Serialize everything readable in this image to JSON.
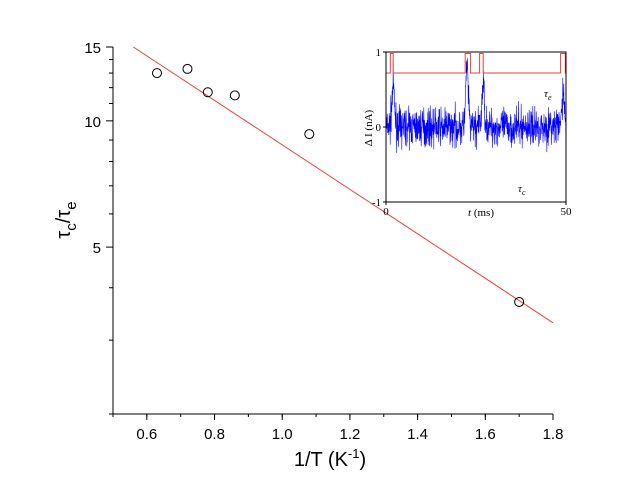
{
  "chart_data": [
    {
      "type": "scatter",
      "x": [
        0.63,
        0.72,
        0.78,
        0.86,
        1.08,
        1.7
      ],
      "y": [
        13.0,
        13.3,
        11.7,
        11.5,
        9.3,
        3.7
      ],
      "fit_line": {
        "x": [
          0.56,
          1.8
        ],
        "y": [
          15.0,
          3.3
        ],
        "color": "#e8433a"
      },
      "xlim": [
        0.5,
        1.8
      ],
      "ylim": [
        2.0,
        15.0
      ],
      "xticks": [
        "0.6",
        "0.8",
        "1.0",
        "1.2",
        "1.4",
        "1.6",
        "1.8"
      ],
      "xtick_values": [
        0.6,
        0.8,
        1.0,
        1.2,
        1.4,
        1.6,
        1.8
      ],
      "yticks": [
        "5",
        "10",
        "15"
      ],
      "ytick_values": [
        5,
        10,
        15
      ],
      "xlabel_main": "1/T (K",
      "xlabel_sup": "-1",
      "xlabel_tail": ")",
      "ylabel_num": "τ",
      "ylabel_num_sub": "c",
      "ylabel_sep": "/τ",
      "ylabel_den_sub": "e",
      "marker_color": "#000000",
      "grid": false
    },
    {
      "type": "line",
      "xlim": [
        0,
        50
      ],
      "ylim": [
        -1,
        1
      ],
      "xticks": [
        "0",
        "50"
      ],
      "xtick_values": [
        0,
        50
      ],
      "yticks": [
        "1",
        "0",
        "-1"
      ],
      "ytick_values": [
        1,
        0,
        -1
      ],
      "xlabel_italic": "t",
      "xlabel_rest": " (ms)",
      "ylabel": "Δ I (nA)",
      "annotation_tau_e_sym": "τ",
      "annotation_tau_e_sub": "e",
      "annotation_tau_c_sym": "τ",
      "annotation_tau_c_sub": "c",
      "noise_color": "#0000ff",
      "telegraph_color": "#e8433a",
      "telegraph_events": [
        [
          1.2,
          2.0
        ],
        [
          22.0,
          23.5
        ],
        [
          26.0,
          27.0
        ],
        [
          48.5,
          49.8
        ]
      ],
      "spikes": [
        [
          22.5,
          0.8
        ],
        [
          27.0,
          0.55
        ],
        [
          49.2,
          0.45
        ],
        [
          2.0,
          0.55
        ]
      ]
    }
  ]
}
